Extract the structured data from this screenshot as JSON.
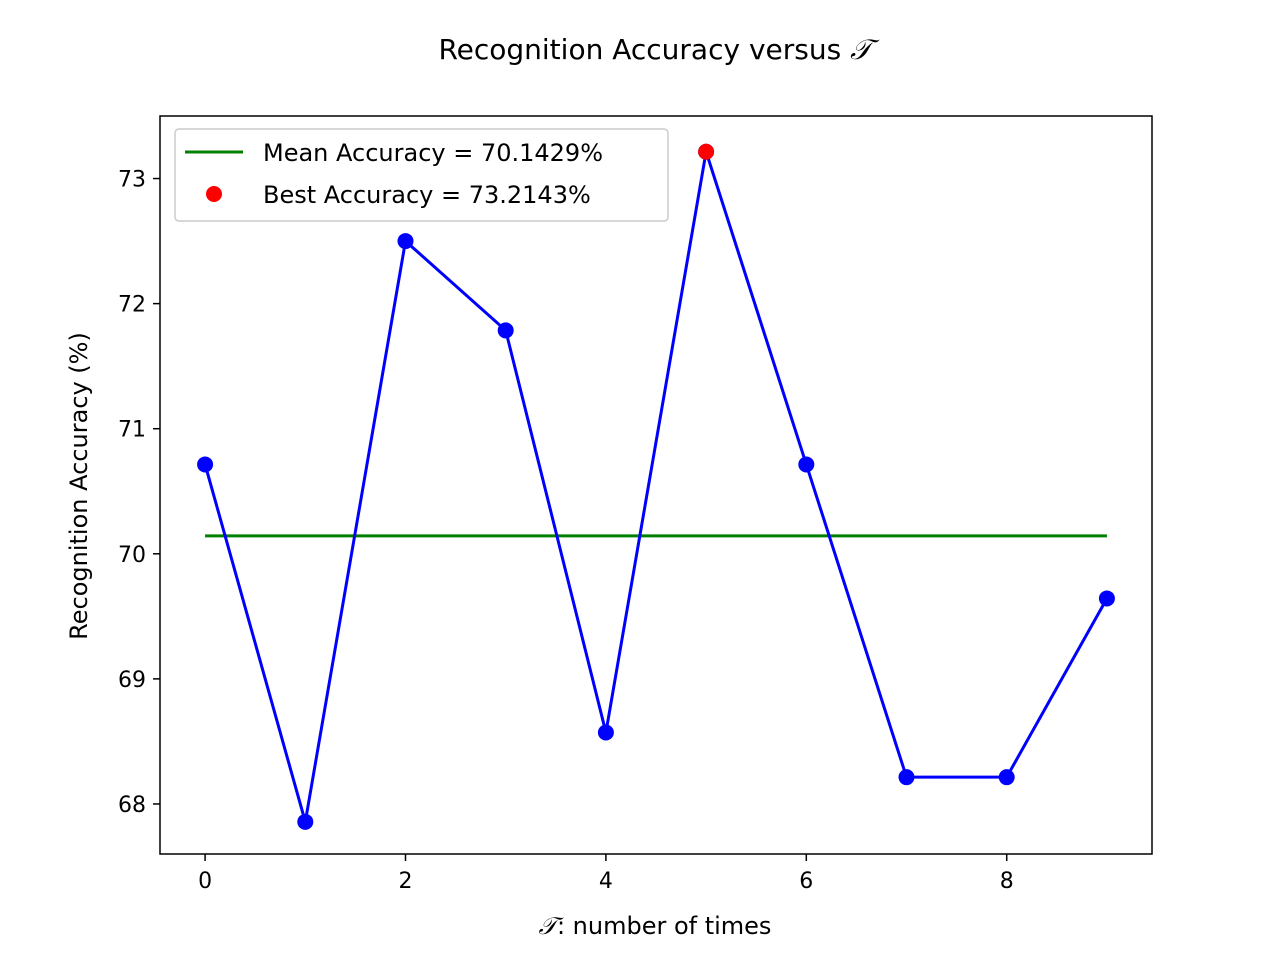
{
  "chart_data": {
    "type": "line",
    "title": "Recognition Accuracy versus ",
    "title_symbol": "𝒯",
    "xlabel": ": number of times",
    "xlabel_symbol": "𝒯",
    "ylabel": "Recognition Accuracy (%)",
    "xlim": [
      -0.45,
      9.45
    ],
    "ylim": [
      67.6,
      73.5
    ],
    "xticks": [
      0,
      2,
      4,
      6,
      8
    ],
    "yticks": [
      68,
      69,
      70,
      71,
      72,
      73
    ],
    "series": [
      {
        "name": "",
        "color": "#0000ff",
        "marker": "circle",
        "x": [
          0,
          1,
          2,
          3,
          4,
          5,
          6,
          7,
          8,
          9
        ],
        "values": [
          70.7143,
          67.8571,
          72.5,
          71.7857,
          68.5714,
          73.2143,
          70.7143,
          68.2143,
          68.2143,
          69.6429
        ]
      }
    ],
    "mean_line": {
      "label": "Mean Accuracy = 70.1429%",
      "value": 70.1429,
      "x_range": [
        0,
        9
      ],
      "color": "#008000"
    },
    "best_point": {
      "label": "Best Accuracy = 73.2143%",
      "x": 5,
      "value": 73.2143,
      "color": "#ff0000"
    },
    "legend": {
      "placement": "top-left"
    },
    "grid": false
  }
}
